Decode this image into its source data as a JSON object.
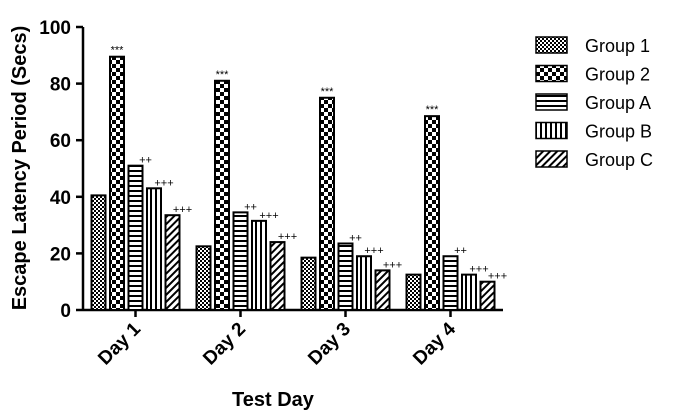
{
  "chart_data": {
    "type": "bar",
    "xlabel": "Test Day",
    "ylabel": "Escape Latency Period (Secs)",
    "ylim": [
      0,
      100
    ],
    "yticks": [
      0,
      20,
      40,
      60,
      80,
      100
    ],
    "categories": [
      "Day 1",
      "Day 2",
      "Day 3",
      "Day 4"
    ],
    "legend_position": "right",
    "series": [
      {
        "name": "Group 1",
        "pattern": "fine-check",
        "values": [
          40.5,
          22.5,
          18.5,
          12.5
        ],
        "annotations": [
          "",
          "",
          "",
          ""
        ]
      },
      {
        "name": "Group 2",
        "pattern": "coarse-check",
        "values": [
          89.5,
          81,
          75,
          68.5
        ],
        "annotations": [
          "***",
          "***",
          "***",
          "***"
        ]
      },
      {
        "name": "Group A",
        "pattern": "horizontal-stripes",
        "values": [
          51,
          34.5,
          23.5,
          19
        ],
        "annotations": [
          "++",
          "++",
          "++",
          "++"
        ]
      },
      {
        "name": "Group B",
        "pattern": "vertical-stripes",
        "values": [
          43,
          31.5,
          19,
          12.5
        ],
        "annotations": [
          "+++",
          "+++",
          "+++",
          "+++"
        ]
      },
      {
        "name": "Group C",
        "pattern": "diagonal-stripes",
        "values": [
          33.5,
          24,
          14,
          10
        ],
        "annotations": [
          "+++",
          "+++",
          "+++",
          "+++"
        ]
      }
    ]
  }
}
